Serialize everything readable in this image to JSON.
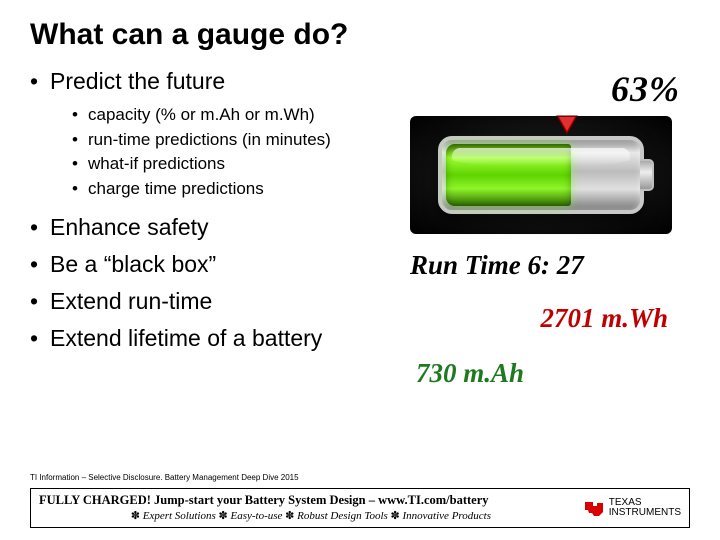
{
  "title": "What can a gauge do?",
  "bullets": {
    "b1": "Predict the future",
    "sub": {
      "s1": "capacity (% or m.Ah or m.Wh)",
      "s2": "run-time predictions (in minutes)",
      "s3": "what-if predictions",
      "s4": "charge time predictions"
    },
    "b2": "Enhance safety",
    "b3": "Be a “black box”",
    "b4": "Extend run-time",
    "b5": "Extend lifetime of a battery"
  },
  "battery": {
    "percent_label": "63%",
    "percent_value": 63,
    "fill_color_top": "#9fff32",
    "fill_color_mid": "#5fd400",
    "shell_color": "#c8c8c8",
    "bg_color": "#000000",
    "pointer_color": "#b30000"
  },
  "metrics": {
    "runtime": "Run Time  6: 27",
    "mwh": "2701 m.Wh",
    "mah": "730 m.Ah",
    "mwh_color": "#c00000",
    "mah_color": "#1f7a1f"
  },
  "footer": {
    "disclosure": "TI Information – Selective Disclosure. Battery Management Deep Dive 2015",
    "line1": "FULLY CHARGED! Jump-start your Battery System Design – www.TI.com/battery",
    "line2_parts": {
      "a": "Expert Solutions",
      "b": "Easy-to-use",
      "c": "Robust Design Tools",
      "d": "Innovative Products"
    },
    "logo_text_top": "TEXAS",
    "logo_text_bot": "INSTRUMENTS",
    "logo_color": "#d80000"
  }
}
